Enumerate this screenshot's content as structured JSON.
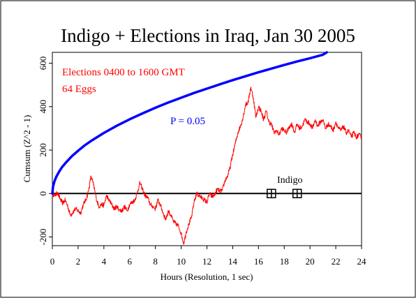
{
  "colors": {
    "background": "#ffffff",
    "border": "#000000",
    "cumsum_series": "#ff0000",
    "p05_envelope": "#0000ff",
    "zero_line": "#000000"
  },
  "chart_data": {
    "type": "line",
    "title": "Indigo + Elections in Iraq, Jan 30 2005",
    "xlabel": "Hours (Resolution, 1 sec)",
    "ylabel": "Cumsum (Z^2 - 1)",
    "xlim": [
      0,
      24
    ],
    "ylim": [
      -240,
      650
    ],
    "x_ticks": [
      0,
      2,
      4,
      6,
      8,
      10,
      12,
      14,
      16,
      18,
      20,
      22,
      24
    ],
    "y_ticks": [
      -200,
      0,
      200,
      400,
      600
    ],
    "grid": false,
    "annotations": [
      {
        "name": "elections-window",
        "text": "Elections 0400 to 1600 GMT"
      },
      {
        "name": "egg-count",
        "text": "64 Eggs"
      },
      {
        "name": "probability-envelope",
        "text": "P = 0.05"
      },
      {
        "name": "indigo",
        "text": "Indigo"
      }
    ],
    "markers": [
      {
        "label_ref": "indigo",
        "x": 17.0,
        "y": 0
      },
      {
        "label_ref": "indigo",
        "x": 19.0,
        "y": 0
      }
    ],
    "series": [
      {
        "role": "cumulative-deviation",
        "color": "#ff0000",
        "x": [
          0.0,
          0.2,
          0.4,
          0.6,
          0.8,
          1.0,
          1.2,
          1.4,
          1.6,
          1.8,
          2.0,
          2.2,
          2.4,
          2.6,
          2.8,
          3.0,
          3.2,
          3.4,
          3.6,
          3.8,
          4.0,
          4.2,
          4.4,
          4.6,
          4.8,
          5.0,
          5.2,
          5.4,
          5.6,
          5.8,
          6.0,
          6.2,
          6.4,
          6.6,
          6.8,
          7.0,
          7.2,
          7.4,
          7.6,
          7.8,
          8.0,
          8.2,
          8.4,
          8.6,
          8.8,
          9.0,
          9.2,
          9.4,
          9.6,
          9.8,
          10.0,
          10.2,
          10.4,
          10.6,
          10.8,
          11.0,
          11.2,
          11.4,
          11.6,
          11.8,
          12.0,
          12.2,
          12.4,
          12.6,
          12.8,
          13.0,
          13.2,
          13.4,
          13.6,
          13.8,
          14.0,
          14.2,
          14.4,
          14.6,
          14.8,
          15.0,
          15.2,
          15.4,
          15.6,
          15.8,
          16.0,
          16.2,
          16.4,
          16.6,
          16.8,
          17.0,
          17.2,
          17.4,
          17.6,
          17.8,
          18.0,
          18.2,
          18.4,
          18.6,
          18.8,
          19.0,
          19.2,
          19.4,
          19.6,
          19.8,
          20.0,
          20.2,
          20.4,
          20.6,
          20.8,
          21.0,
          21.2,
          21.4,
          21.6,
          21.8,
          22.0,
          22.2,
          22.4,
          22.6,
          22.8,
          23.0,
          23.2,
          23.4,
          23.6,
          23.8,
          24.0
        ],
        "values": [
          0,
          -10,
          5,
          -25,
          -45,
          -30,
          -60,
          -100,
          -85,
          -70,
          -80,
          -90,
          -50,
          -30,
          10,
          80,
          40,
          -20,
          -60,
          -50,
          -55,
          -10,
          -30,
          -50,
          -70,
          -60,
          -75,
          -80,
          -60,
          -80,
          -50,
          -40,
          -30,
          5,
          50,
          20,
          -10,
          -20,
          -50,
          -60,
          -70,
          -30,
          -55,
          -90,
          -120,
          -80,
          -100,
          -130,
          -140,
          -150,
          -185,
          -230,
          -175,
          -140,
          -110,
          -40,
          0,
          -10,
          -20,
          -30,
          -40,
          0,
          -15,
          -5,
          20,
          10,
          15,
          60,
          80,
          120,
          180,
          230,
          280,
          310,
          350,
          410,
          420,
          490,
          440,
          350,
          400,
          380,
          340,
          380,
          330,
          320,
          280,
          290,
          270,
          300,
          290,
          280,
          310,
          320,
          280,
          320,
          300,
          310,
          340,
          330,
          320,
          300,
          340,
          310,
          330,
          340,
          300,
          320,
          310,
          290,
          330,
          300,
          290,
          310,
          280,
          290,
          260,
          280,
          260,
          270,
          260
        ]
      },
      {
        "role": "p05-envelope",
        "color": "#0000ff",
        "x": [
          0.0,
          0.05,
          0.15,
          0.3,
          0.5,
          0.75,
          1.0,
          1.5,
          2.0,
          2.5,
          3.0,
          4.0,
          5.0,
          6.0,
          7.0,
          8.0,
          9.0,
          10.0,
          11.0,
          12.0,
          13.0,
          14.0,
          15.0,
          16.0,
          17.0,
          18.0,
          19.0,
          20.0,
          21.0,
          21.3
        ],
        "values": [
          0,
          31,
          54,
          76,
          98,
          121,
          139,
          171,
          197,
          221,
          242,
          279,
          312,
          342,
          369,
          395,
          419,
          441,
          463,
          483,
          503,
          522,
          540,
          558,
          575,
          592,
          608,
          623,
          639,
          650
        ]
      }
    ]
  }
}
